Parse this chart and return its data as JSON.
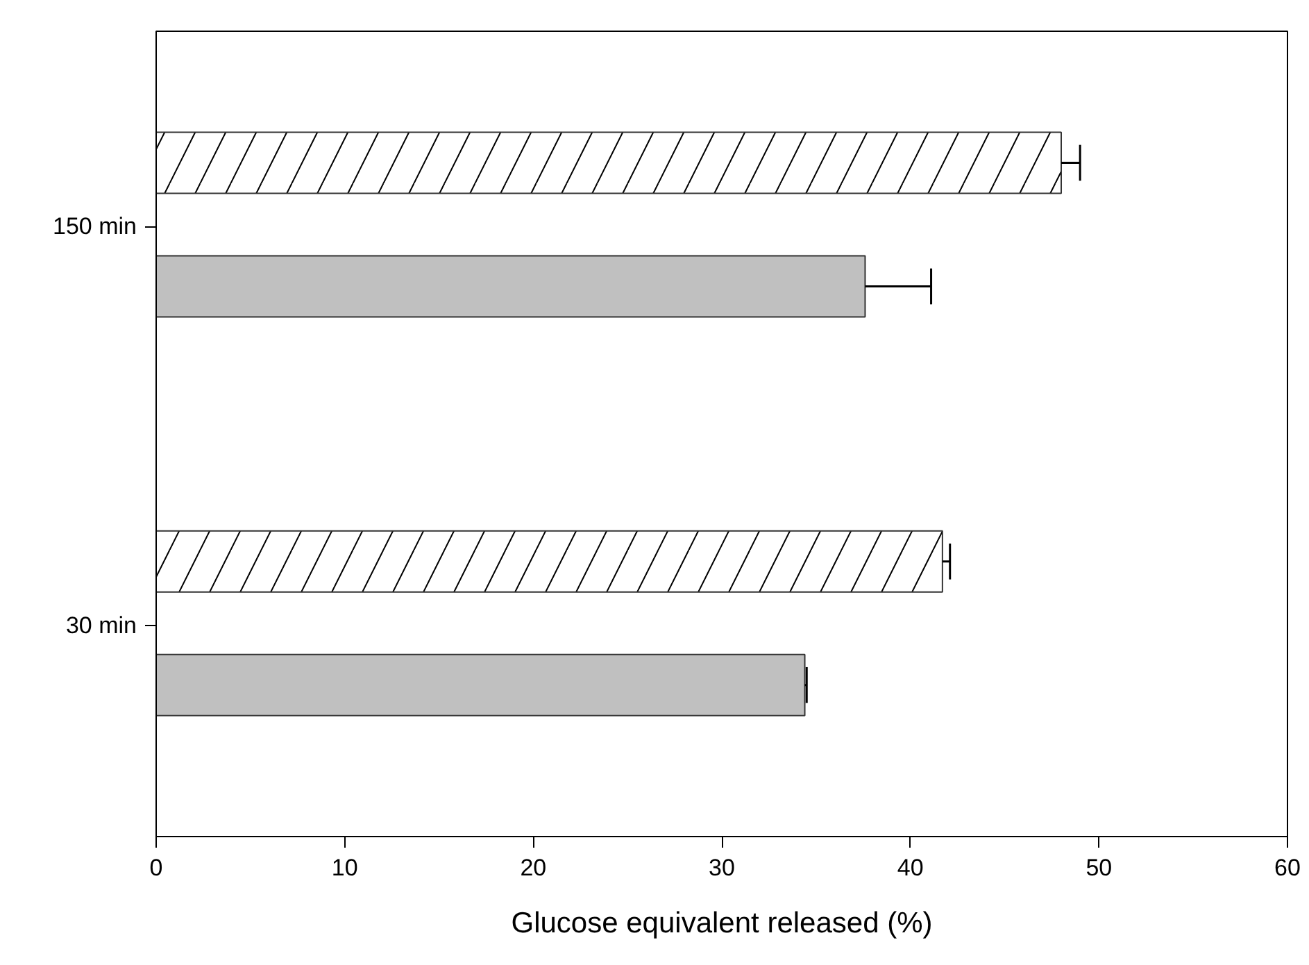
{
  "chart_data": {
    "type": "bar",
    "orientation": "horizontal",
    "xlabel": "Glucose equivalent released (%)",
    "categories": [
      "150 min",
      "30 min"
    ],
    "series": [
      {
        "color": "#ffffff",
        "values": [
          48.0,
          41.7
        ],
        "errors": [
          1.0,
          0.4
        ]
      },
      {
        "color": "#c0c0c0",
        "values": [
          37.6,
          34.4
        ],
        "errors": [
          3.5,
          0.1
        ]
      }
    ],
    "xlim": [
      0,
      60
    ],
    "xticks": [
      0,
      10,
      20,
      30,
      40,
      50,
      60
    ]
  }
}
